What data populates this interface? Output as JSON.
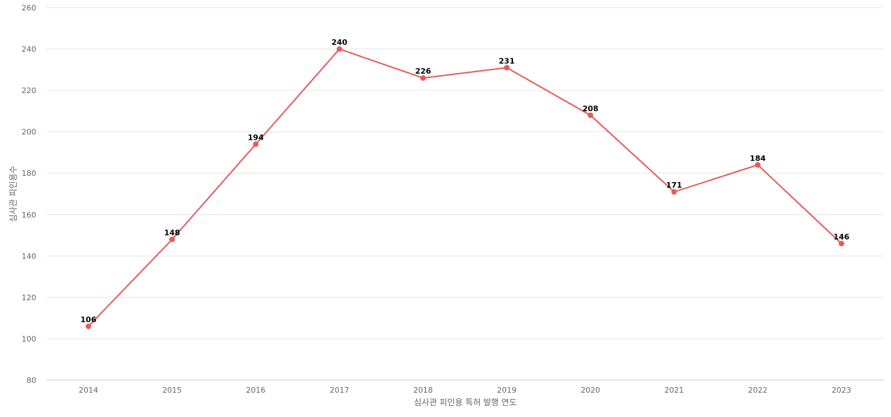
{
  "chart_data": {
    "type": "line",
    "title": "",
    "xlabel": "심사관 피인용 특허 발행 연도",
    "ylabel": "심사관 피인용수",
    "x": [
      "2014",
      "2015",
      "2016",
      "2017",
      "2018",
      "2019",
      "2020",
      "2021",
      "2022",
      "2023"
    ],
    "series": [
      {
        "values": [
          106,
          148,
          194,
          240,
          226,
          231,
          208,
          171,
          184,
          146
        ],
        "color": "#e85a5a"
      }
    ],
    "ylim": [
      80,
      260
    ],
    "yticks": [
      80,
      100,
      120,
      140,
      160,
      180,
      200,
      220,
      240,
      260
    ],
    "grid": true,
    "legend": "none"
  }
}
